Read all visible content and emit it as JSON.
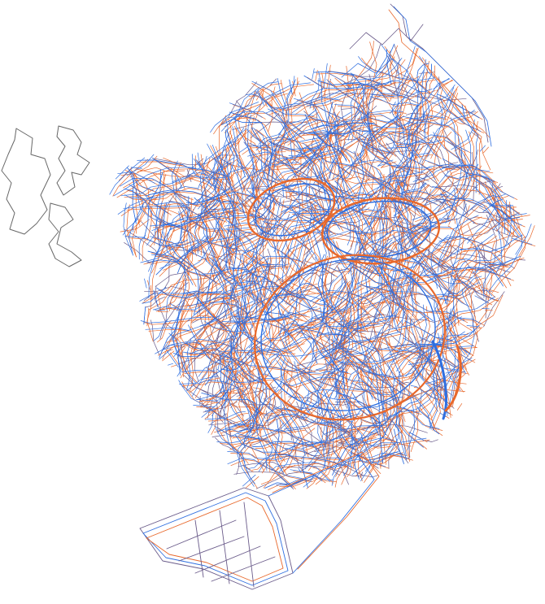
{
  "map": {
    "colors": {
      "background": "#ffffff",
      "layer_orange": "#e8682b",
      "layer_blue": "#2f6fe0",
      "layer_purple": "#6a5b8a",
      "layer_gray": "#777777"
    },
    "layers": [
      {
        "name": "orange-layer",
        "color_key": "layer_orange"
      },
      {
        "name": "blue-layer",
        "color_key": "layer_blue"
      },
      {
        "name": "purple-outline-layer",
        "color_key": "layer_purple"
      }
    ]
  }
}
